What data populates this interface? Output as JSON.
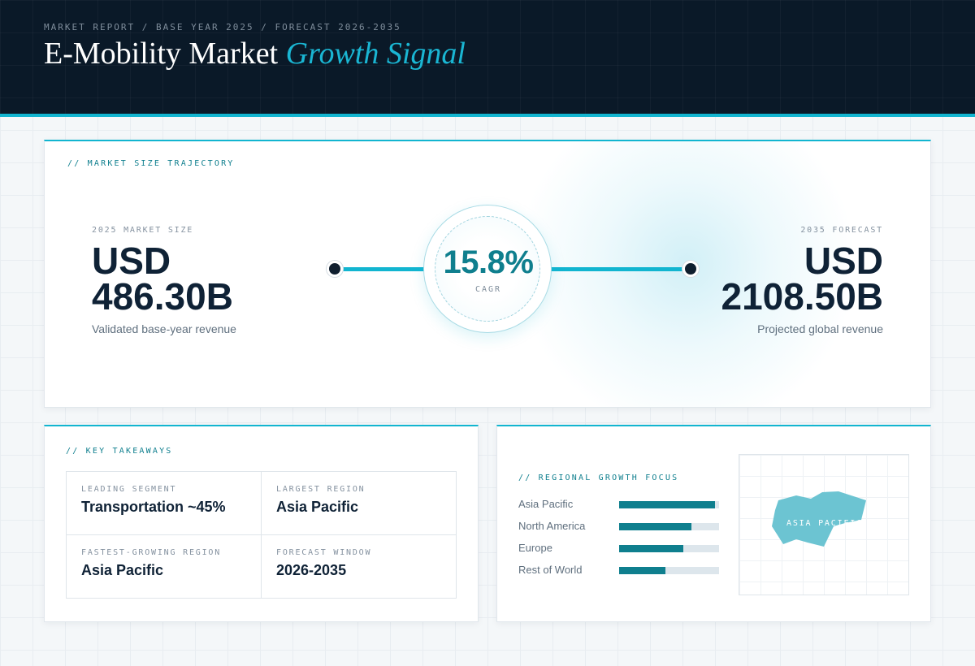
{
  "header": {
    "breadcrumb": "MARKET REPORT / BASE YEAR 2025 / FORECAST 2026-2035",
    "title_main": "E-Mobility Market",
    "title_accent": "Growth Signal"
  },
  "trajectory": {
    "section_label": "// MARKET SIZE TRAJECTORY",
    "base": {
      "label": "2025 MARKET SIZE",
      "currency": "USD",
      "value": "486.30B",
      "caption": "Validated base-year revenue"
    },
    "cagr": {
      "value": "15.8%",
      "label": "CAGR"
    },
    "forecast": {
      "label": "2035 FORECAST",
      "currency": "USD",
      "value": "2108.50B",
      "caption": "Projected global revenue"
    }
  },
  "takeaways": {
    "section_label": "// KEY TAKEAWAYS",
    "items": [
      {
        "label": "LEADING SEGMENT",
        "value": "Transportation ~45%"
      },
      {
        "label": "LARGEST REGION",
        "value": "Asia Pacific"
      },
      {
        "label": "FASTEST-GROWING REGION",
        "value": "Asia Pacific"
      },
      {
        "label": "FORECAST WINDOW",
        "value": "2026-2035"
      }
    ]
  },
  "regional": {
    "section_label": "// REGIONAL GROWTH FOCUS",
    "regions": [
      {
        "name": "Asia Pacific",
        "level": 0.96
      },
      {
        "name": "North America",
        "level": 0.72
      },
      {
        "name": "Europe",
        "level": 0.64
      },
      {
        "name": "Rest of World",
        "level": 0.46
      }
    ],
    "map_label": "ASIA PACIFIC"
  },
  "colors": {
    "accent": "#12b5d0",
    "teal": "#0f7f8e",
    "navy": "#0a1928"
  }
}
